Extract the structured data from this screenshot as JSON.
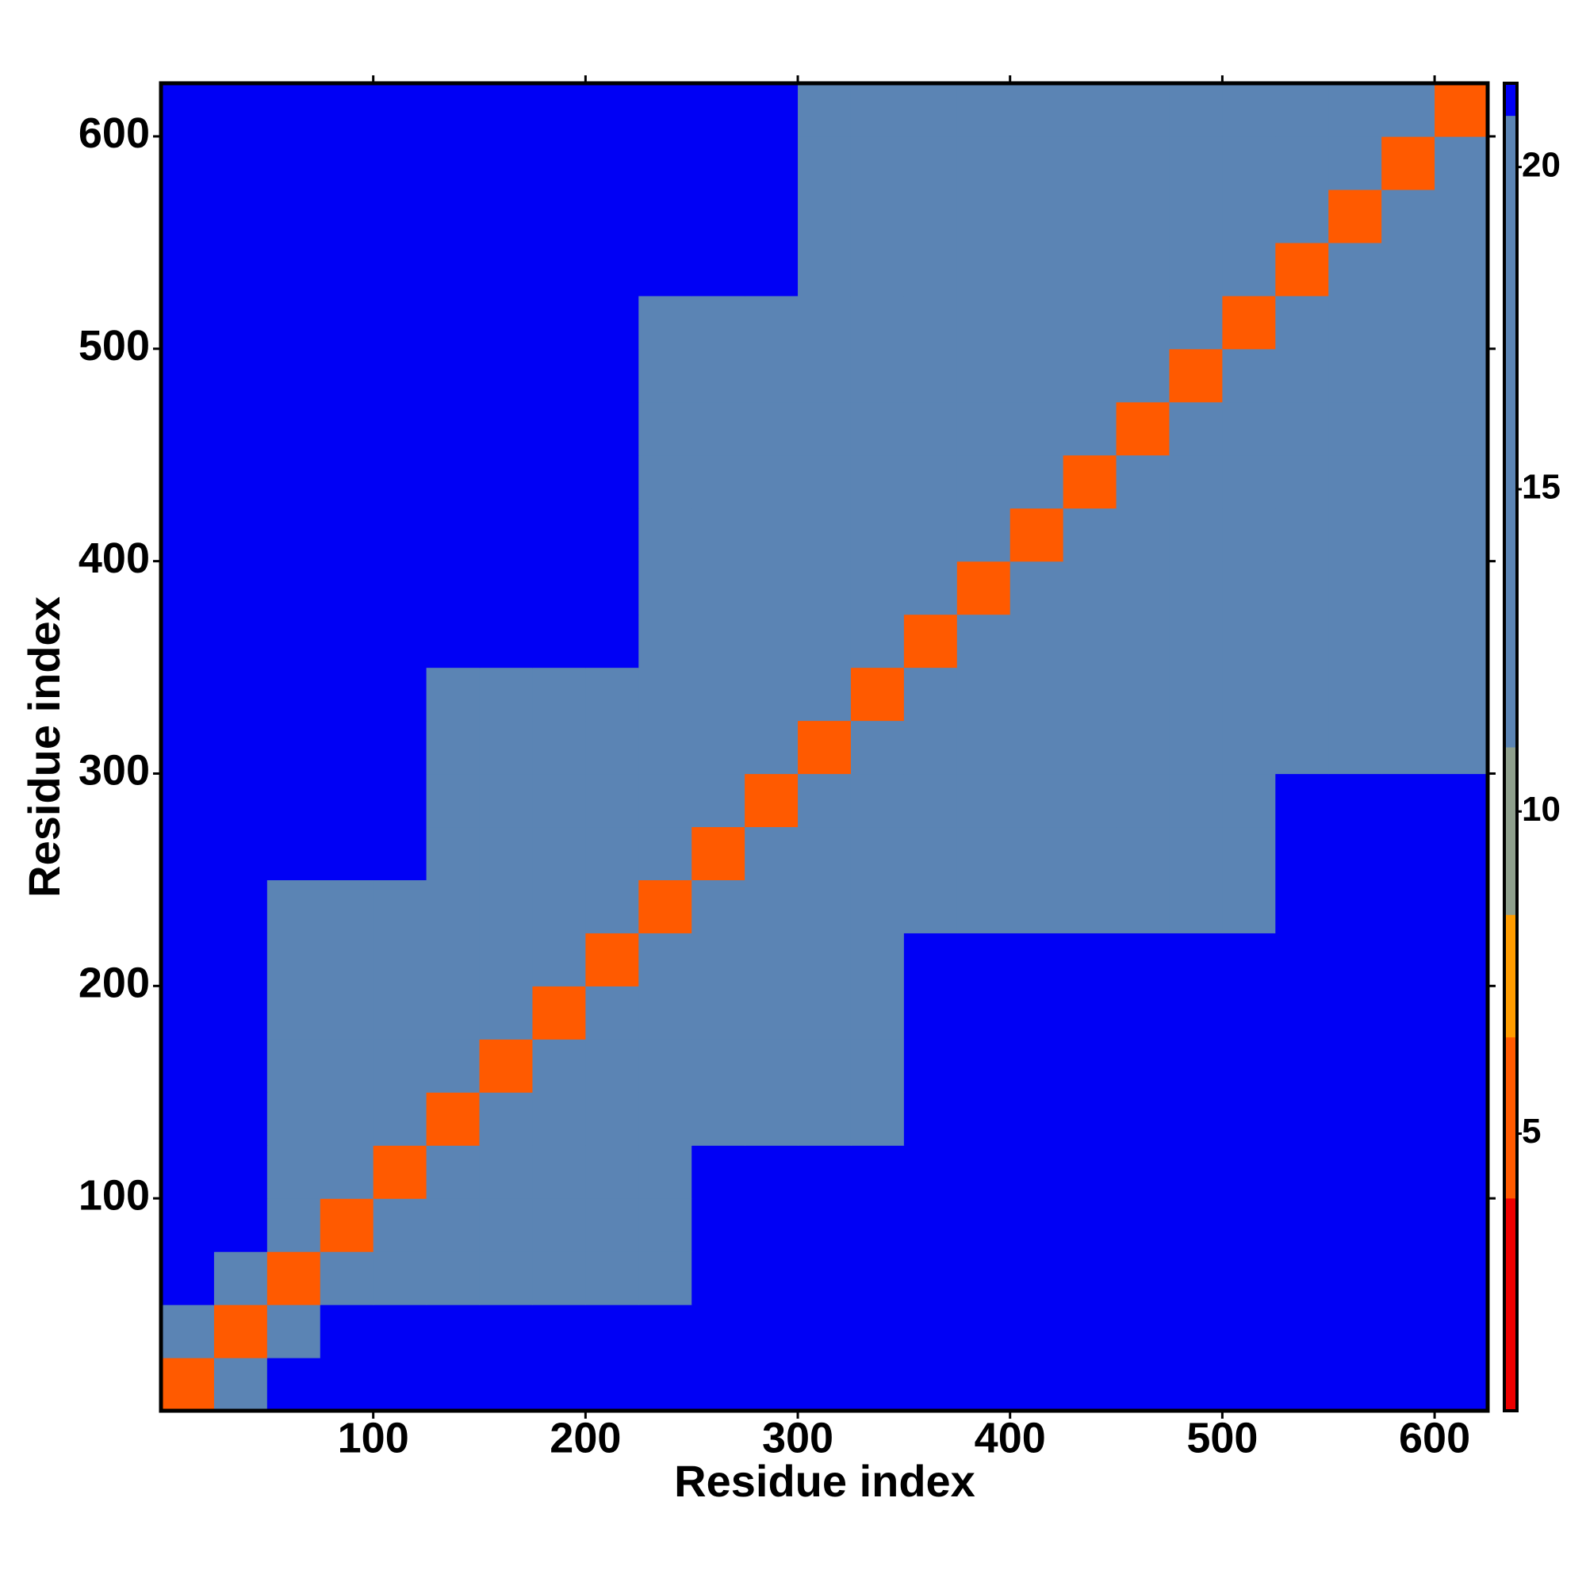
{
  "chart_data": {
    "type": "heatmap",
    "x_label": "Residue index",
    "y_label": "Residue index",
    "xlim": [
      0,
      625
    ],
    "ylim": [
      0,
      625
    ],
    "xticks": [
      100,
      200,
      300,
      400,
      500,
      600
    ],
    "yticks": [
      100,
      200,
      300,
      400,
      500,
      600
    ],
    "x_bins": [
      0,
      25,
      50,
      75,
      100,
      125,
      150,
      175,
      200,
      225,
      250,
      275,
      300,
      325,
      350,
      375,
      400,
      425,
      450,
      475,
      500,
      525,
      550,
      575,
      600,
      625
    ],
    "y_bins": [
      0,
      25,
      50,
      75,
      100,
      125,
      150,
      175,
      200,
      225,
      250,
      275,
      300,
      325,
      350,
      375,
      400,
      425,
      450,
      475,
      500,
      525,
      550,
      575,
      600,
      625
    ],
    "zlim": [
      0.7,
      21.3
    ],
    "zticks": [
      5,
      10,
      15,
      20
    ],
    "colorscale": {
      "bounds": [
        0.7,
        4,
        6.5,
        8.4,
        11,
        20.8,
        21.3
      ],
      "colors": [
        "#ee0000",
        "#ff5a00",
        "#ff9c00",
        "#8e9f8c",
        "#5b84b4",
        "#0000f5"
      ]
    },
    "z": [
      [
        6,
        12,
        21.3,
        21.3,
        21.3,
        21.3,
        21.3,
        21.3,
        21.3,
        21.3,
        21.3,
        21.3,
        21.3,
        21.3,
        21.3,
        21.3,
        21.3,
        21.3,
        21.3,
        21.3,
        21.3,
        21.3,
        21.3,
        21.3,
        21.3
      ],
      [
        12,
        6,
        12,
        21.3,
        21.3,
        21.3,
        21.3,
        21.3,
        21.3,
        21.3,
        21.3,
        21.3,
        21.3,
        21.3,
        21.3,
        21.3,
        21.3,
        21.3,
        21.3,
        21.3,
        21.3,
        21.3,
        21.3,
        21.3,
        21.3
      ],
      [
        21.3,
        12,
        6,
        12,
        17,
        17,
        17,
        17,
        17,
        17,
        21.3,
        21.3,
        21.3,
        21.3,
        21.3,
        21.3,
        21.3,
        21.3,
        21.3,
        21.3,
        21.3,
        21.3,
        21.3,
        21.3,
        21.3
      ],
      [
        21.3,
        21.3,
        17,
        6,
        12,
        17,
        17,
        17,
        17,
        17,
        21.3,
        21.3,
        21.3,
        21.3,
        21.3,
        21.3,
        21.3,
        21.3,
        21.3,
        21.3,
        21.3,
        21.3,
        21.3,
        21.3,
        21.3
      ],
      [
        21.3,
        21.3,
        17,
        12,
        6,
        12,
        17,
        17,
        17,
        17,
        21.3,
        21.3,
        21.3,
        21.3,
        21.3,
        21.3,
        21.3,
        21.3,
        21.3,
        21.3,
        21.3,
        21.3,
        21.3,
        21.3,
        21.3
      ],
      [
        21.3,
        21.3,
        17,
        17,
        12,
        6,
        12,
        17,
        17,
        17,
        19,
        19,
        19,
        19,
        21.3,
        21.3,
        21.3,
        21.3,
        21.3,
        21.3,
        21.3,
        21.3,
        21.3,
        21.3,
        21.3
      ],
      [
        21.3,
        21.3,
        17,
        17,
        17,
        12,
        6,
        12,
        17,
        17,
        19,
        19,
        19,
        19,
        21.3,
        21.3,
        21.3,
        21.3,
        21.3,
        21.3,
        21.3,
        21.3,
        21.3,
        21.3,
        21.3
      ],
      [
        21.3,
        21.3,
        17,
        17,
        17,
        17,
        12,
        6,
        12,
        17,
        19,
        19,
        19,
        19,
        21.3,
        21.3,
        21.3,
        21.3,
        21.3,
        21.3,
        21.3,
        21.3,
        21.3,
        21.3,
        21.3
      ],
      [
        21.3,
        21.3,
        17,
        17,
        17,
        17,
        17,
        12,
        6,
        12,
        19,
        19,
        19,
        19,
        21.3,
        21.3,
        21.3,
        21.3,
        21.3,
        21.3,
        21.3,
        21.3,
        21.3,
        21.3,
        21.3
      ],
      [
        21.3,
        21.3,
        17,
        17,
        17,
        17,
        17,
        17,
        12,
        6,
        12,
        17,
        17,
        17,
        17,
        17,
        17,
        17,
        17,
        17,
        17,
        21.3,
        21.3,
        21.3,
        21.3
      ],
      [
        21.3,
        21.3,
        21.3,
        21.3,
        21.3,
        19,
        19,
        19,
        19,
        12,
        6,
        12,
        17,
        17,
        17,
        17,
        17,
        17,
        17,
        17,
        17,
        21.3,
        21.3,
        21.3,
        21.3
      ],
      [
        21.3,
        21.3,
        21.3,
        21.3,
        21.3,
        19,
        19,
        19,
        19,
        17,
        12,
        6,
        12,
        17,
        17,
        17,
        17,
        17,
        17,
        17,
        17,
        21.3,
        21.3,
        21.3,
        21.3
      ],
      [
        21.3,
        21.3,
        21.3,
        21.3,
        21.3,
        19,
        19,
        19,
        19,
        17,
        17,
        12,
        6,
        12,
        17,
        17,
        17,
        17,
        17,
        17,
        17,
        17,
        17,
        17,
        17
      ],
      [
        21.3,
        21.3,
        21.3,
        21.3,
        21.3,
        19,
        19,
        19,
        19,
        17,
        17,
        17,
        12,
        6,
        12,
        17,
        17,
        17,
        17,
        17,
        17,
        17,
        17,
        17,
        17
      ],
      [
        21.3,
        21.3,
        21.3,
        21.3,
        21.3,
        21.3,
        21.3,
        21.3,
        21.3,
        17,
        17,
        17,
        17,
        12,
        6,
        12,
        17,
        17,
        17,
        17,
        17,
        17,
        17,
        17,
        17
      ],
      [
        21.3,
        21.3,
        21.3,
        21.3,
        21.3,
        21.3,
        21.3,
        21.3,
        21.3,
        17,
        17,
        17,
        17,
        17,
        12,
        6,
        12,
        17,
        17,
        17,
        17,
        17,
        17,
        17,
        17
      ],
      [
        21.3,
        21.3,
        21.3,
        21.3,
        21.3,
        21.3,
        21.3,
        21.3,
        21.3,
        17,
        17,
        17,
        17,
        17,
        17,
        12,
        6,
        12,
        17,
        17,
        17,
        17,
        17,
        17,
        17
      ],
      [
        21.3,
        21.3,
        21.3,
        21.3,
        21.3,
        21.3,
        21.3,
        21.3,
        21.3,
        17,
        17,
        17,
        17,
        17,
        17,
        17,
        12,
        6,
        12,
        17,
        17,
        17,
        17,
        17,
        17
      ],
      [
        21.3,
        21.3,
        21.3,
        21.3,
        21.3,
        21.3,
        21.3,
        21.3,
        21.3,
        17,
        17,
        17,
        17,
        17,
        17,
        17,
        17,
        12,
        6,
        12,
        17,
        17,
        17,
        17,
        17
      ],
      [
        21.3,
        21.3,
        21.3,
        21.3,
        21.3,
        21.3,
        21.3,
        21.3,
        21.3,
        17,
        17,
        17,
        17,
        17,
        17,
        17,
        17,
        17,
        12,
        6,
        12,
        17,
        17,
        17,
        17
      ],
      [
        21.3,
        21.3,
        21.3,
        21.3,
        21.3,
        21.3,
        21.3,
        21.3,
        21.3,
        17,
        17,
        17,
        17,
        17,
        17,
        17,
        17,
        17,
        17,
        12,
        6,
        12,
        17,
        17,
        17
      ],
      [
        21.3,
        21.3,
        21.3,
        21.3,
        21.3,
        21.3,
        21.3,
        21.3,
        21.3,
        21.3,
        21.3,
        21.3,
        17,
        17,
        17,
        17,
        17,
        17,
        17,
        17,
        12,
        6,
        12,
        17,
        17
      ],
      [
        21.3,
        21.3,
        21.3,
        21.3,
        21.3,
        21.3,
        21.3,
        21.3,
        21.3,
        21.3,
        21.3,
        21.3,
        17,
        17,
        17,
        17,
        17,
        17,
        17,
        17,
        17,
        12,
        6,
        12,
        17
      ],
      [
        21.3,
        21.3,
        21.3,
        21.3,
        21.3,
        21.3,
        21.3,
        21.3,
        21.3,
        21.3,
        21.3,
        21.3,
        17,
        17,
        17,
        17,
        17,
        17,
        17,
        17,
        17,
        17,
        12,
        6,
        12
      ],
      [
        21.3,
        21.3,
        21.3,
        21.3,
        21.3,
        21.3,
        21.3,
        21.3,
        21.3,
        21.3,
        21.3,
        21.3,
        17,
        17,
        17,
        17,
        17,
        17,
        17,
        17,
        17,
        17,
        17,
        12,
        6
      ]
    ]
  }
}
